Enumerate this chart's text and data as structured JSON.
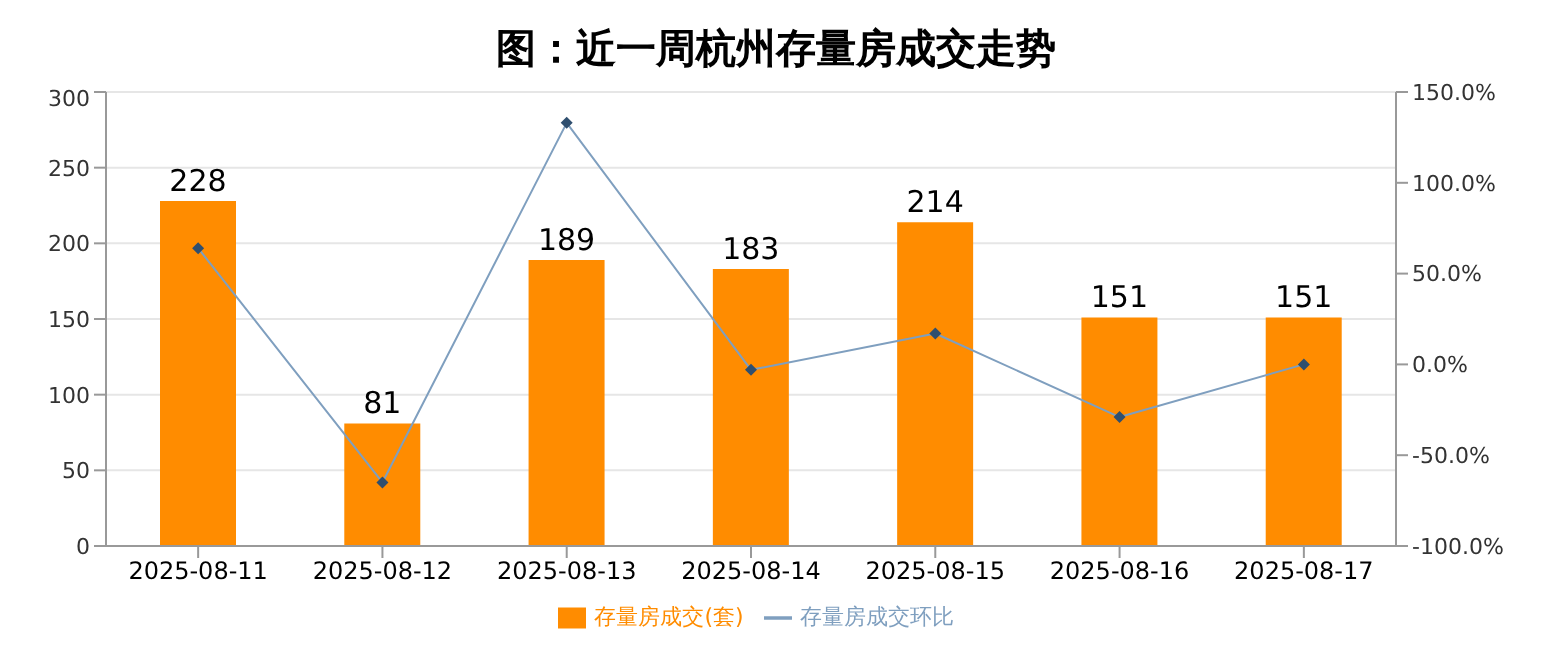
{
  "chart_data": {
    "type": "bar",
    "title": "图：近一周杭州存量房成交走势",
    "categories": [
      "2025-08-11",
      "2025-08-12",
      "2025-08-13",
      "2025-08-14",
      "2025-08-15",
      "2025-08-16",
      "2025-08-17"
    ],
    "series": [
      {
        "name": "存量房成交(套)",
        "color": "#ff8c00",
        "values": [
          228,
          81,
          189,
          183,
          214,
          151,
          151
        ],
        "data_labels": true
      },
      {
        "name": "存量房成交环比",
        "type": "line",
        "axis": "y2",
        "color": "#7f9fbf",
        "marker": "diamond",
        "values": [
          64,
          -65,
          133,
          -3,
          17,
          -29,
          0
        ]
      }
    ],
    "ylim": [
      0,
      300
    ],
    "yticks": [
      0,
      50,
      100,
      150,
      200,
      250,
      300
    ],
    "y2lim": [
      -100,
      150
    ],
    "y2ticks": [
      {
        "value": -100,
        "label": "-100.0%"
      },
      {
        "value": -50,
        "label": "-50.0%"
      },
      {
        "value": 0,
        "label": "0.0%"
      },
      {
        "value": 50,
        "label": "50.0%"
      },
      {
        "value": 100,
        "label": "100.0%"
      },
      {
        "value": 150,
        "label": "150.0%"
      }
    ],
    "grid": "y",
    "legend": "bottom"
  }
}
